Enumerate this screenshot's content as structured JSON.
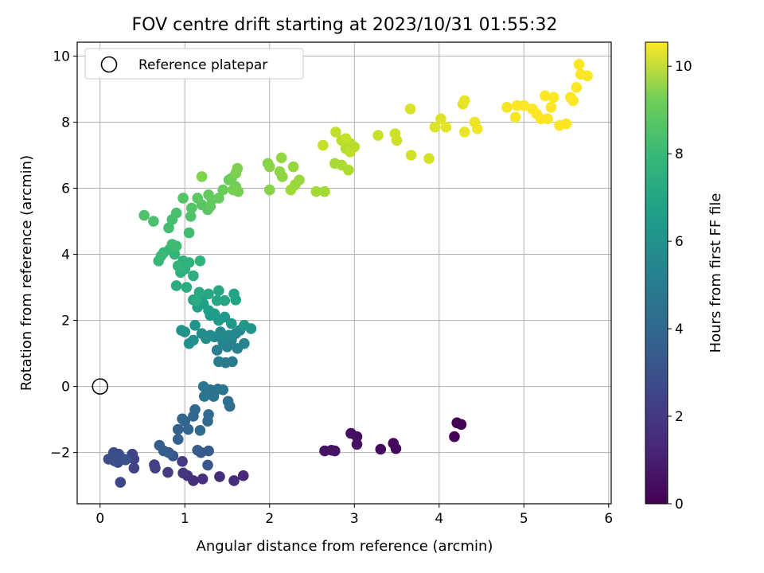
{
  "chart_data": {
    "type": "scatter",
    "title": "FOV centre drift starting at 2023/10/31 01:55:32",
    "xlabel": "Angular distance from reference (arcmin)",
    "ylabel": "Rotation from reference (arcmin)",
    "xlim": [
      -0.27,
      6.03
    ],
    "ylim": [
      -3.55,
      10.42
    ],
    "xticks": [
      "0",
      "1",
      "2",
      "3",
      "4",
      "5",
      "6"
    ],
    "yticks": [
      "−2",
      "0",
      "2",
      "4",
      "6",
      "8",
      "10"
    ],
    "grid": true,
    "legend": {
      "position": "top-left",
      "entries": [
        {
          "label": "Reference platepar",
          "marker": "open-circle"
        }
      ]
    },
    "reference_point": {
      "x": 0,
      "y": 0
    },
    "colorbar": {
      "label": "Hours from first FF file",
      "colormap": "viridis",
      "range": [
        0,
        10.55
      ],
      "ticks": [
        "0",
        "2",
        "4",
        "6",
        "8",
        "10"
      ]
    },
    "point_columns": [
      "x",
      "y",
      "hours"
    ],
    "points": [
      [
        4.21,
        -1.1,
        0.05
      ],
      [
        4.26,
        -1.15,
        0.08
      ],
      [
        4.18,
        -1.52,
        0.12
      ],
      [
        3.46,
        -1.72,
        0.2
      ],
      [
        3.49,
        -1.88,
        0.25
      ],
      [
        3.31,
        -1.9,
        0.3
      ],
      [
        3.03,
        -1.52,
        0.35
      ],
      [
        2.96,
        -1.42,
        0.4
      ],
      [
        3.03,
        -1.75,
        0.45
      ],
      [
        2.65,
        -1.95,
        0.5
      ],
      [
        2.73,
        -1.93,
        0.55
      ],
      [
        2.77,
        -1.95,
        0.6
      ],
      [
        1.69,
        -2.7,
        1.2
      ],
      [
        1.58,
        -2.85,
        1.3
      ],
      [
        1.41,
        -2.73,
        1.4
      ],
      [
        1.21,
        -2.8,
        1.5
      ],
      [
        1.03,
        -2.7,
        1.6
      ],
      [
        0.98,
        -2.62,
        1.7
      ],
      [
        0.97,
        -2.27,
        1.8
      ],
      [
        0.8,
        -2.6,
        1.9
      ],
      [
        0.64,
        -2.37,
        2.0
      ],
      [
        0.65,
        -2.47,
        2.05
      ],
      [
        0.4,
        -2.47,
        2.1
      ],
      [
        0.4,
        -2.2,
        2.15
      ],
      [
        0.38,
        -2.05,
        2.2
      ],
      [
        0.24,
        -2.9,
        2.25
      ],
      [
        0.28,
        -2.2,
        2.3
      ],
      [
        0.21,
        -2.3,
        2.35
      ],
      [
        0.18,
        -2.15,
        2.4
      ],
      [
        0.16,
        -2.0,
        2.45
      ],
      [
        0.22,
        -2.05,
        2.5
      ],
      [
        0.1,
        -2.2,
        2.55
      ],
      [
        0.17,
        -2.25,
        2.6
      ],
      [
        0.3,
        -2.22,
        2.65
      ],
      [
        1.27,
        -2.38,
        2.8
      ],
      [
        1.19,
        -2.0,
        2.9
      ],
      [
        1.28,
        -1.95,
        3.0
      ],
      [
        1.15,
        -1.93,
        3.05
      ],
      [
        1.1,
        -2.85,
        1.45
      ],
      [
        0.86,
        -2.1,
        2.7
      ],
      [
        0.81,
        -2.0,
        3.1
      ],
      [
        0.75,
        -1.95,
        3.15
      ],
      [
        0.7,
        -1.78,
        3.2
      ],
      [
        0.92,
        -1.6,
        3.25
      ],
      [
        0.92,
        -1.3,
        3.3
      ],
      [
        1.0,
        -1.05,
        3.35
      ],
      [
        1.04,
        -1.3,
        3.4
      ],
      [
        0.97,
        -0.98,
        3.45
      ],
      [
        1.1,
        -0.9,
        3.5
      ],
      [
        1.12,
        -0.7,
        3.55
      ],
      [
        1.18,
        -1.33,
        3.6
      ],
      [
        1.27,
        -1.05,
        3.65
      ],
      [
        1.28,
        -0.85,
        3.7
      ],
      [
        1.53,
        -0.6,
        3.75
      ],
      [
        1.51,
        -0.45,
        3.8
      ],
      [
        1.34,
        -0.3,
        3.9
      ],
      [
        1.39,
        -0.08,
        3.95
      ],
      [
        1.3,
        -0.1,
        4.0
      ],
      [
        1.23,
        -0.3,
        4.05
      ],
      [
        1.45,
        -0.1,
        4.1
      ],
      [
        1.22,
        0.0,
        4.15
      ],
      [
        1.48,
        0.72,
        4.3
      ],
      [
        1.56,
        0.75,
        4.35
      ],
      [
        1.4,
        0.75,
        4.4
      ],
      [
        1.38,
        1.1,
        4.5
      ],
      [
        1.5,
        1.2,
        4.6
      ],
      [
        1.62,
        1.15,
        4.65
      ],
      [
        1.7,
        1.3,
        4.7
      ],
      [
        1.55,
        1.4,
        4.75
      ],
      [
        1.45,
        1.35,
        4.8
      ],
      [
        1.35,
        1.5,
        4.85
      ],
      [
        1.6,
        1.6,
        4.9
      ],
      [
        1.52,
        1.55,
        4.95
      ],
      [
        1.65,
        1.7,
        5.0
      ],
      [
        1.42,
        1.65,
        5.05
      ],
      [
        1.3,
        1.55,
        5.1
      ],
      [
        1.2,
        1.6,
        5.15
      ],
      [
        1.25,
        1.45,
        5.2
      ],
      [
        1.1,
        1.4,
        5.25
      ],
      [
        1.05,
        1.3,
        5.3
      ],
      [
        1.0,
        1.65,
        5.35
      ],
      [
        0.96,
        1.7,
        5.4
      ],
      [
        1.12,
        1.85,
        5.45
      ],
      [
        1.78,
        1.75,
        5.5
      ],
      [
        1.7,
        1.85,
        5.55
      ],
      [
        1.55,
        1.9,
        5.6
      ],
      [
        1.4,
        2.0,
        5.65
      ],
      [
        1.47,
        2.1,
        5.7
      ],
      [
        1.3,
        2.15,
        5.75
      ],
      [
        1.35,
        2.2,
        5.8
      ],
      [
        1.28,
        2.3,
        5.85
      ],
      [
        1.22,
        2.5,
        5.9
      ],
      [
        1.15,
        2.4,
        5.95
      ],
      [
        1.2,
        2.6,
        6.0
      ],
      [
        1.1,
        2.62,
        6.05
      ],
      [
        1.6,
        2.62,
        6.1
      ],
      [
        1.58,
        2.8,
        6.15
      ],
      [
        1.47,
        2.6,
        6.2
      ],
      [
        1.4,
        2.9,
        6.25
      ],
      [
        1.38,
        2.6,
        6.3
      ],
      [
        1.28,
        2.8,
        6.35
      ],
      [
        1.17,
        2.85,
        6.4
      ],
      [
        1.13,
        2.6,
        6.45
      ],
      [
        1.02,
        3.0,
        6.5
      ],
      [
        0.9,
        3.05,
        6.55
      ],
      [
        1.1,
        3.35,
        6.6
      ],
      [
        0.95,
        3.45,
        6.65
      ],
      [
        1.0,
        3.55,
        6.7
      ],
      [
        1.05,
        3.75,
        6.75
      ],
      [
        0.98,
        3.8,
        6.8
      ],
      [
        1.18,
        3.8,
        6.85
      ],
      [
        0.92,
        3.65,
        6.9
      ],
      [
        0.88,
        4.0,
        6.95
      ],
      [
        0.82,
        4.15,
        7.0
      ],
      [
        0.75,
        4.05,
        7.05
      ],
      [
        0.69,
        3.8,
        7.1
      ],
      [
        0.72,
        3.95,
        7.15
      ],
      [
        0.85,
        4.3,
        7.2
      ],
      [
        0.9,
        4.25,
        7.25
      ],
      [
        1.05,
        4.65,
        7.3
      ],
      [
        0.81,
        4.8,
        7.35
      ],
      [
        0.85,
        5.05,
        7.4
      ],
      [
        0.9,
        5.25,
        7.45
      ],
      [
        0.63,
        5.0,
        7.5
      ],
      [
        0.52,
        5.18,
        7.55
      ],
      [
        1.07,
        5.15,
        7.6
      ],
      [
        1.08,
        5.4,
        7.65
      ],
      [
        0.98,
        5.7,
        7.7
      ],
      [
        1.2,
        5.5,
        7.75
      ],
      [
        1.27,
        5.35,
        7.8
      ],
      [
        1.15,
        5.7,
        7.85
      ],
      [
        1.3,
        5.45,
        7.9
      ],
      [
        1.32,
        5.65,
        7.95
      ],
      [
        1.28,
        5.8,
        8.0
      ],
      [
        1.4,
        5.7,
        8.05
      ],
      [
        1.45,
        5.95,
        8.1
      ],
      [
        1.52,
        6.25,
        8.15
      ],
      [
        1.55,
        6.3,
        8.2
      ],
      [
        1.6,
        6.05,
        8.25
      ],
      [
        1.57,
        5.95,
        8.3
      ],
      [
        1.63,
        5.9,
        8.35
      ],
      [
        1.6,
        6.45,
        8.4
      ],
      [
        1.62,
        6.6,
        8.45
      ],
      [
        1.2,
        6.35,
        8.5
      ],
      [
        1.98,
        6.75,
        8.55
      ],
      [
        2.0,
        5.95,
        8.6
      ],
      [
        2.0,
        6.65,
        8.65
      ],
      [
        2.12,
        6.5,
        8.7
      ],
      [
        2.15,
        6.35,
        8.75
      ],
      [
        2.14,
        6.92,
        8.8
      ],
      [
        2.28,
        6.65,
        8.85
      ],
      [
        2.35,
        6.25,
        8.9
      ],
      [
        2.3,
        6.1,
        8.95
      ],
      [
        2.25,
        5.95,
        9.0
      ],
      [
        2.55,
        5.9,
        9.05
      ],
      [
        2.65,
        5.9,
        9.1
      ],
      [
        2.77,
        6.75,
        9.15
      ],
      [
        2.85,
        6.7,
        9.2
      ],
      [
        2.93,
        6.55,
        9.25
      ],
      [
        2.9,
        7.2,
        9.3
      ],
      [
        2.95,
        7.35,
        9.35
      ],
      [
        3.0,
        7.25,
        9.4
      ],
      [
        2.85,
        7.45,
        9.45
      ],
      [
        2.95,
        7.1,
        9.5
      ],
      [
        2.78,
        7.7,
        9.55
      ],
      [
        2.9,
        7.5,
        9.6
      ],
      [
        2.63,
        7.3,
        9.65
      ],
      [
        3.28,
        7.6,
        9.7
      ],
      [
        3.48,
        7.65,
        9.75
      ],
      [
        3.5,
        7.45,
        9.8
      ],
      [
        3.67,
        7.0,
        9.85
      ],
      [
        3.88,
        6.9,
        9.9
      ],
      [
        3.66,
        8.4,
        9.95
      ],
      [
        3.95,
        7.85,
        10.0
      ],
      [
        4.02,
        8.1,
        10.05
      ],
      [
        4.08,
        7.85,
        10.1
      ],
      [
        4.28,
        8.55,
        10.15
      ],
      [
        4.3,
        8.65,
        10.2
      ],
      [
        4.3,
        7.7,
        10.25
      ],
      [
        4.42,
        8.0,
        10.3
      ],
      [
        4.45,
        7.8,
        10.35
      ],
      [
        4.8,
        8.45,
        10.4
      ],
      [
        4.9,
        8.15,
        10.45
      ],
      [
        4.92,
        8.5,
        10.5
      ],
      [
        5.0,
        8.5,
        10.55
      ],
      [
        5.1,
        8.4,
        10.55
      ],
      [
        5.15,
        8.25,
        10.55
      ],
      [
        5.2,
        8.1,
        10.55
      ],
      [
        5.25,
        8.8,
        10.55
      ],
      [
        5.28,
        8.1,
        10.55
      ],
      [
        5.32,
        8.45,
        10.55
      ],
      [
        5.35,
        8.75,
        10.55
      ],
      [
        5.42,
        7.9,
        10.55
      ],
      [
        5.5,
        7.95,
        10.55
      ],
      [
        5.55,
        8.75,
        10.55
      ],
      [
        5.58,
        8.65,
        10.55
      ],
      [
        5.62,
        9.05,
        10.55
      ],
      [
        5.65,
        9.75,
        10.55
      ],
      [
        5.67,
        9.45,
        10.55
      ],
      [
        5.75,
        9.4,
        10.55
      ]
    ]
  }
}
